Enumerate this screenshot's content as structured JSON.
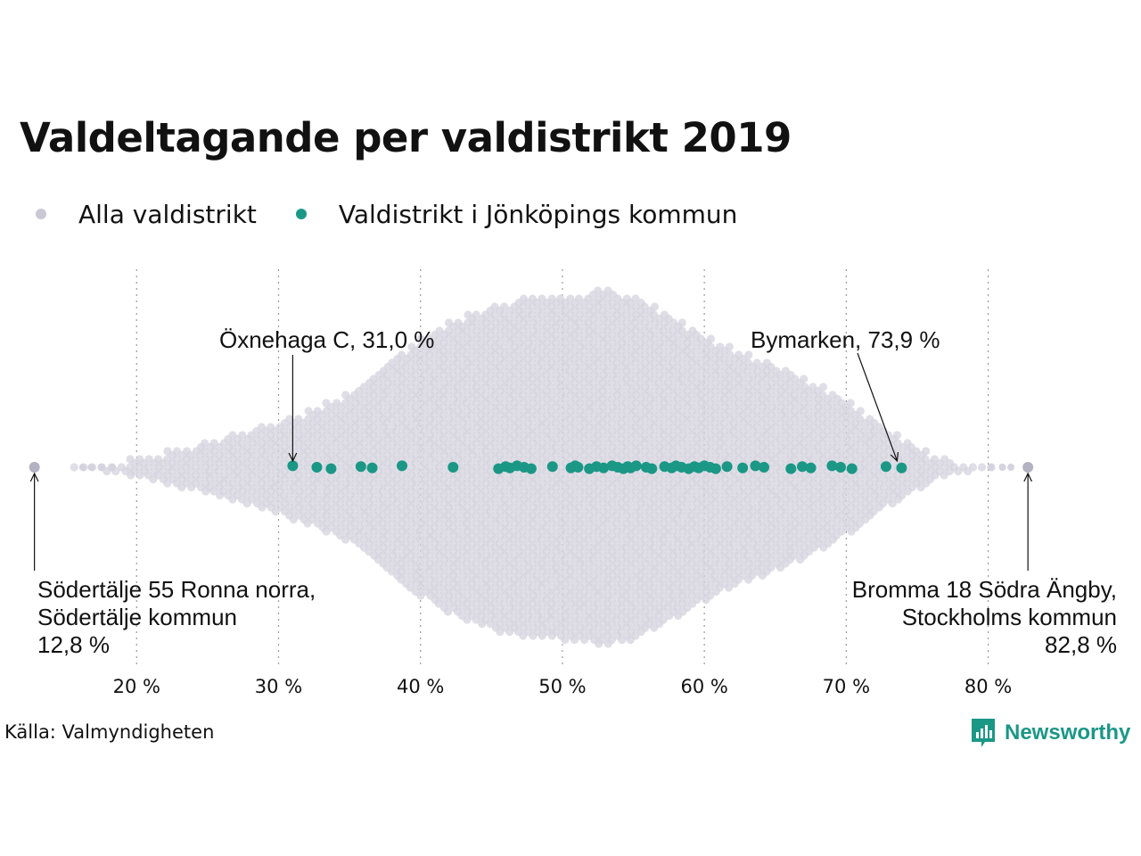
{
  "colors": {
    "all": "#d4d3de",
    "jonkoping": "#1b9786",
    "text": "#111111",
    "grid": "#9a9a9a",
    "brand": "#1b9786"
  },
  "brand": {
    "name": "Newsworthy",
    "icon": "bar-chart-speech-bubble-icon"
  },
  "source": "Källa: Valmyndigheten",
  "chart_data": {
    "type": "scatter",
    "title": "Valdeltagande per valdistrikt 2019",
    "legend": [
      {
        "label": "Alla valdistrikt",
        "color": "#d4d3de"
      },
      {
        "label": "Valdistrikt i Jönköpings kommun",
        "color": "#1b9786"
      }
    ],
    "legend_position": "top-left",
    "grid": "vertical dotted",
    "xlabel": "",
    "ylabel": "",
    "xlim": [
      13.2,
      84.8
    ],
    "xticks": [
      20,
      30,
      40,
      50,
      60,
      70,
      80
    ],
    "xtick_labels": [
      "20 %",
      "30 %",
      "40 %",
      "50 %",
      "60 %",
      "70 %",
      "80 %"
    ],
    "series": [
      {
        "name": "Alla valdistrikt",
        "description_values": "beeswarm density by turnout",
        "density_profile": [
          [
            15.5,
            0
          ],
          [
            18,
            0.03
          ],
          [
            20,
            0.05
          ],
          [
            24,
            0.13
          ],
          [
            28,
            0.22
          ],
          [
            31,
            0.29
          ],
          [
            35,
            0.42
          ],
          [
            38,
            0.62
          ],
          [
            42,
            0.82
          ],
          [
            46,
            0.94
          ],
          [
            50,
            0.97
          ],
          [
            53,
            1.0
          ],
          [
            55,
            0.97
          ],
          [
            58,
            0.84
          ],
          [
            61,
            0.71
          ],
          [
            64,
            0.61
          ],
          [
            67,
            0.51
          ],
          [
            70,
            0.38
          ],
          [
            73,
            0.22
          ],
          [
            76,
            0.08
          ],
          [
            78,
            0.03
          ],
          [
            81,
            0
          ]
        ],
        "values": [
          12.8,
          82.8
        ]
      },
      {
        "name": "Valdistrikt i Jönköpings kommun",
        "values": [
          31.0,
          32.7,
          33.7,
          35.8,
          36.6,
          38.7,
          42.3,
          45.5,
          46.0,
          46.3,
          46.8,
          47.3,
          47.8,
          49.3,
          50.6,
          50.9,
          51.1,
          51.9,
          52.4,
          52.9,
          53.5,
          53.9,
          54.3,
          54.6,
          54.8,
          55.2,
          55.9,
          56.3,
          57.2,
          57.7,
          58.0,
          58.4,
          58.9,
          59.3,
          59.6,
          60.0,
          60.4,
          60.8,
          61.6,
          62.7,
          63.6,
          64.2,
          66.1,
          66.9,
          67.5,
          69.0,
          69.6,
          70.4,
          72.8,
          73.9
        ]
      }
    ],
    "annotations": [
      {
        "lines": [
          "Öxnehaga C, 31,0 %"
        ],
        "x": 31.0,
        "series": "Valdistrikt i Jönköpings kommun"
      },
      {
        "lines": [
          "Bymarken, 73,9 %"
        ],
        "x": 73.9,
        "series": "Valdistrikt i Jönköpings kommun"
      },
      {
        "lines": [
          "Södertälje 55 Ronna norra,",
          "Södertälje kommun",
          "12,8 %"
        ],
        "x": 12.8,
        "series": "Alla valdistrikt"
      },
      {
        "lines": [
          "Bromma 18 Södra Ängby,",
          "Stockholms kommun",
          "82,8 %"
        ],
        "x": 82.8,
        "series": "Alla valdistrikt"
      }
    ]
  }
}
